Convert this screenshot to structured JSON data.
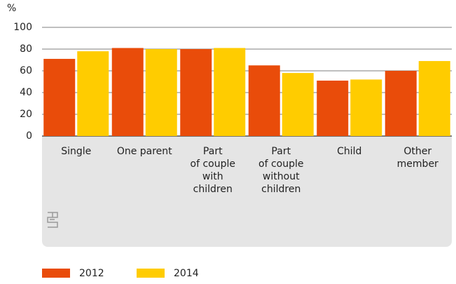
{
  "chart_data": {
    "type": "bar",
    "y_unit": "%",
    "categories": [
      [
        "Single"
      ],
      [
        "One parent"
      ],
      [
        "Part",
        "of couple",
        "with",
        "children"
      ],
      [
        "Part",
        "of couple",
        "without",
        "children"
      ],
      [
        "Child"
      ],
      [
        "Other",
        "member"
      ]
    ],
    "series": [
      {
        "name": "2012",
        "color": "#e94c0a",
        "values": [
          71,
          81,
          80,
          65,
          51,
          60
        ]
      },
      {
        "name": "2014",
        "color": "#ffcc00",
        "values": [
          78,
          80,
          81,
          58,
          52,
          69
        ]
      }
    ],
    "ylim": [
      0,
      100
    ],
    "yticks": [
      0,
      20,
      40,
      60,
      80,
      100
    ],
    "grid": true
  }
}
